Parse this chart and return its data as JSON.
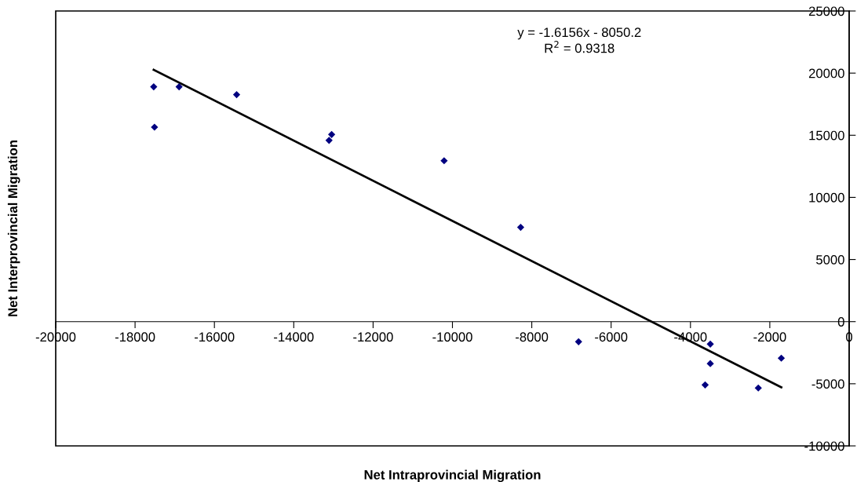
{
  "chart_data": {
    "type": "scatter",
    "xlabel": "Net Intraprovincial Migration",
    "ylabel": "Net Interprovincial Migration",
    "x": [
      -17510,
      -17530,
      -16890,
      -15440,
      -13110,
      -13045,
      -10210,
      -8280,
      -6820,
      -3500,
      -3500,
      -3630,
      -2290,
      -1710
    ],
    "series": [
      {
        "color": "#000080",
        "marker": "diamond",
        "values": [
          15650,
          18900,
          18900,
          18270,
          14590,
          15060,
          12950,
          7590,
          -1620,
          -1810,
          -3380,
          -5090,
          -5340,
          -2940
        ]
      },
      {
        "type": "line",
        "color": "#000000",
        "marker": "none",
        "line_style": "solid",
        "x": [
          -17530,
          -1710
        ],
        "values": [
          20270,
          -5290
        ]
      }
    ],
    "annotations": [
      "y = -1.6156x - 8050.2\nR$^{2}$ = 0.9318"
    ],
    "xlim": [
      -20000,
      0
    ],
    "xticks": [
      -20000,
      -18000,
      -16000,
      -14000,
      -12000,
      -10000,
      -8000,
      -6000,
      -4000,
      -2000,
      0
    ],
    "ylim": [
      -10000,
      25000
    ],
    "yticks": [
      -10000,
      -5000,
      0,
      5000,
      10000,
      15000,
      20000,
      25000
    ],
    "grid": false,
    "legend": false
  }
}
